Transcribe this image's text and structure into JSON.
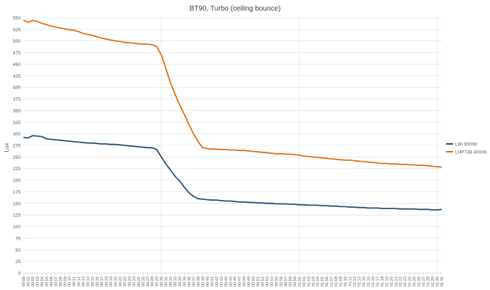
{
  "chart_data": {
    "type": "line",
    "title": "BT90, Turbo (ceiling bounce)",
    "xlabel": "",
    "ylabel": "Lux",
    "ylim": [
      0,
      550
    ],
    "y_tick_step": 25,
    "grid": true,
    "legend_position": "right",
    "colors": {
      "series_1": "#1f4e79",
      "series_2": "#e36c0a",
      "grid": "#d9d9d9",
      "axis": "#bfbfbf"
    },
    "x_start": "00:00",
    "x_end": "01:31",
    "x_tick_step_minutes": 1,
    "series": [
      {
        "name": "L90 6500K",
        "color": "#1f4e79",
        "points": [
          [
            "00:00",
            292
          ],
          [
            "00:01",
            291
          ],
          [
            "00:02",
            296
          ],
          [
            "00:03",
            295
          ],
          [
            "00:04",
            294
          ],
          [
            "00:05",
            289
          ],
          [
            "00:06",
            288
          ],
          [
            "00:07",
            287
          ],
          [
            "00:08",
            286
          ],
          [
            "00:09",
            285
          ],
          [
            "00:10",
            284
          ],
          [
            "00:11",
            283
          ],
          [
            "00:12",
            282
          ],
          [
            "00:13",
            281
          ],
          [
            "00:14",
            280
          ],
          [
            "00:15",
            280
          ],
          [
            "00:16",
            279
          ],
          [
            "00:17",
            278
          ],
          [
            "00:18",
            278
          ],
          [
            "00:19",
            277
          ],
          [
            "00:20",
            277
          ],
          [
            "00:21",
            276
          ],
          [
            "00:22",
            275
          ],
          [
            "00:23",
            274
          ],
          [
            "00:24",
            273
          ],
          [
            "00:25",
            272
          ],
          [
            "00:26",
            271
          ],
          [
            "00:27",
            270
          ],
          [
            "00:28",
            270
          ],
          [
            "00:29",
            266
          ],
          [
            "00:30",
            250
          ],
          [
            "00:31",
            235
          ],
          [
            "00:32",
            222
          ],
          [
            "00:33",
            208
          ],
          [
            "00:34",
            198
          ],
          [
            "00:35",
            185
          ],
          [
            "00:36",
            173
          ],
          [
            "00:37",
            165
          ],
          [
            "00:38",
            160
          ],
          [
            "00:39",
            159
          ],
          [
            "00:40",
            158
          ],
          [
            "00:41",
            157
          ],
          [
            "00:42",
            157
          ],
          [
            "00:43",
            156
          ],
          [
            "00:44",
            155
          ],
          [
            "00:45",
            155
          ],
          [
            "00:46",
            154
          ],
          [
            "00:47",
            153
          ],
          [
            "00:48",
            153
          ],
          [
            "00:49",
            152
          ],
          [
            "00:50",
            152
          ],
          [
            "00:51",
            151
          ],
          [
            "00:52",
            151
          ],
          [
            "00:53",
            150
          ],
          [
            "00:54",
            150
          ],
          [
            "00:55",
            149
          ],
          [
            "00:56",
            149
          ],
          [
            "00:57",
            149
          ],
          [
            "00:58",
            148
          ],
          [
            "00:59",
            148
          ],
          [
            "01:00",
            147
          ],
          [
            "01:01",
            147
          ],
          [
            "01:02",
            146
          ],
          [
            "01:03",
            146
          ],
          [
            "01:04",
            146
          ],
          [
            "01:05",
            145
          ],
          [
            "01:06",
            145
          ],
          [
            "01:07",
            144
          ],
          [
            "01:08",
            144
          ],
          [
            "01:09",
            143
          ],
          [
            "01:10",
            143
          ],
          [
            "01:11",
            142
          ],
          [
            "01:12",
            142
          ],
          [
            "01:13",
            141
          ],
          [
            "01:14",
            141
          ],
          [
            "01:15",
            140
          ],
          [
            "01:16",
            140
          ],
          [
            "01:17",
            140
          ],
          [
            "01:18",
            139
          ],
          [
            "01:19",
            139
          ],
          [
            "01:20",
            139
          ],
          [
            "01:21",
            139
          ],
          [
            "01:22",
            138
          ],
          [
            "01:23",
            138
          ],
          [
            "01:24",
            138
          ],
          [
            "01:25",
            138
          ],
          [
            "01:26",
            137
          ],
          [
            "01:27",
            137
          ],
          [
            "01:28",
            137
          ],
          [
            "01:29",
            136
          ],
          [
            "01:30",
            136
          ],
          [
            "01:31",
            137
          ]
        ]
      },
      {
        "name": "LHP73B 4000K",
        "color": "#e36c0a",
        "points": [
          [
            "00:00",
            545
          ],
          [
            "00:01",
            540
          ],
          [
            "00:02",
            544
          ],
          [
            "00:03",
            542
          ],
          [
            "00:04",
            538
          ],
          [
            "00:05",
            535
          ],
          [
            "00:06",
            532
          ],
          [
            "00:07",
            530
          ],
          [
            "00:08",
            528
          ],
          [
            "00:09",
            526
          ],
          [
            "00:10",
            524
          ],
          [
            "00:11",
            523
          ],
          [
            "00:12",
            520
          ],
          [
            "00:13",
            516
          ],
          [
            "00:14",
            514
          ],
          [
            "00:15",
            512
          ],
          [
            "00:16",
            509
          ],
          [
            "00:17",
            506
          ],
          [
            "00:18",
            504
          ],
          [
            "00:19",
            502
          ],
          [
            "00:20",
            500
          ],
          [
            "00:21",
            499
          ],
          [
            "00:22",
            497
          ],
          [
            "00:23",
            496
          ],
          [
            "00:24",
            495
          ],
          [
            "00:25",
            494
          ],
          [
            "00:26",
            493
          ],
          [
            "00:27",
            493
          ],
          [
            "00:28",
            492
          ],
          [
            "00:29",
            488
          ],
          [
            "00:30",
            470
          ],
          [
            "00:31",
            440
          ],
          [
            "00:32",
            410
          ],
          [
            "00:33",
            385
          ],
          [
            "00:34",
            362
          ],
          [
            "00:35",
            342
          ],
          [
            "00:36",
            320
          ],
          [
            "00:37",
            300
          ],
          [
            "00:38",
            283
          ],
          [
            "00:39",
            270
          ],
          [
            "00:40",
            268
          ],
          [
            "00:41",
            267
          ],
          [
            "00:42",
            267
          ],
          [
            "00:43",
            266
          ],
          [
            "00:44",
            266
          ],
          [
            "00:45",
            265
          ],
          [
            "00:46",
            265
          ],
          [
            "00:47",
            264
          ],
          [
            "00:48",
            264
          ],
          [
            "00:49",
            263
          ],
          [
            "00:50",
            262
          ],
          [
            "00:51",
            261
          ],
          [
            "00:52",
            260
          ],
          [
            "00:53",
            259
          ],
          [
            "00:54",
            258
          ],
          [
            "00:55",
            257
          ],
          [
            "00:56",
            257
          ],
          [
            "00:57",
            256
          ],
          [
            "00:58",
            256
          ],
          [
            "00:59",
            255
          ],
          [
            "01:00",
            254
          ],
          [
            "01:01",
            252
          ],
          [
            "01:02",
            251
          ],
          [
            "01:03",
            250
          ],
          [
            "01:04",
            249
          ],
          [
            "01:05",
            248
          ],
          [
            "01:06",
            247
          ],
          [
            "01:07",
            246
          ],
          [
            "01:08",
            245
          ],
          [
            "01:09",
            244
          ],
          [
            "01:10",
            243
          ],
          [
            "01:11",
            243
          ],
          [
            "01:12",
            242
          ],
          [
            "01:13",
            241
          ],
          [
            "01:14",
            240
          ],
          [
            "01:15",
            239
          ],
          [
            "01:16",
            238
          ],
          [
            "01:17",
            237
          ],
          [
            "01:18",
            236
          ],
          [
            "01:19",
            236
          ],
          [
            "01:20",
            235
          ],
          [
            "01:21",
            235
          ],
          [
            "01:22",
            234
          ],
          [
            "01:23",
            234
          ],
          [
            "01:24",
            233
          ],
          [
            "01:25",
            233
          ],
          [
            "01:26",
            232
          ],
          [
            "01:27",
            232
          ],
          [
            "01:28",
            231
          ],
          [
            "01:29",
            230
          ],
          [
            "01:30",
            229
          ],
          [
            "01:31",
            228
          ]
        ]
      }
    ]
  }
}
